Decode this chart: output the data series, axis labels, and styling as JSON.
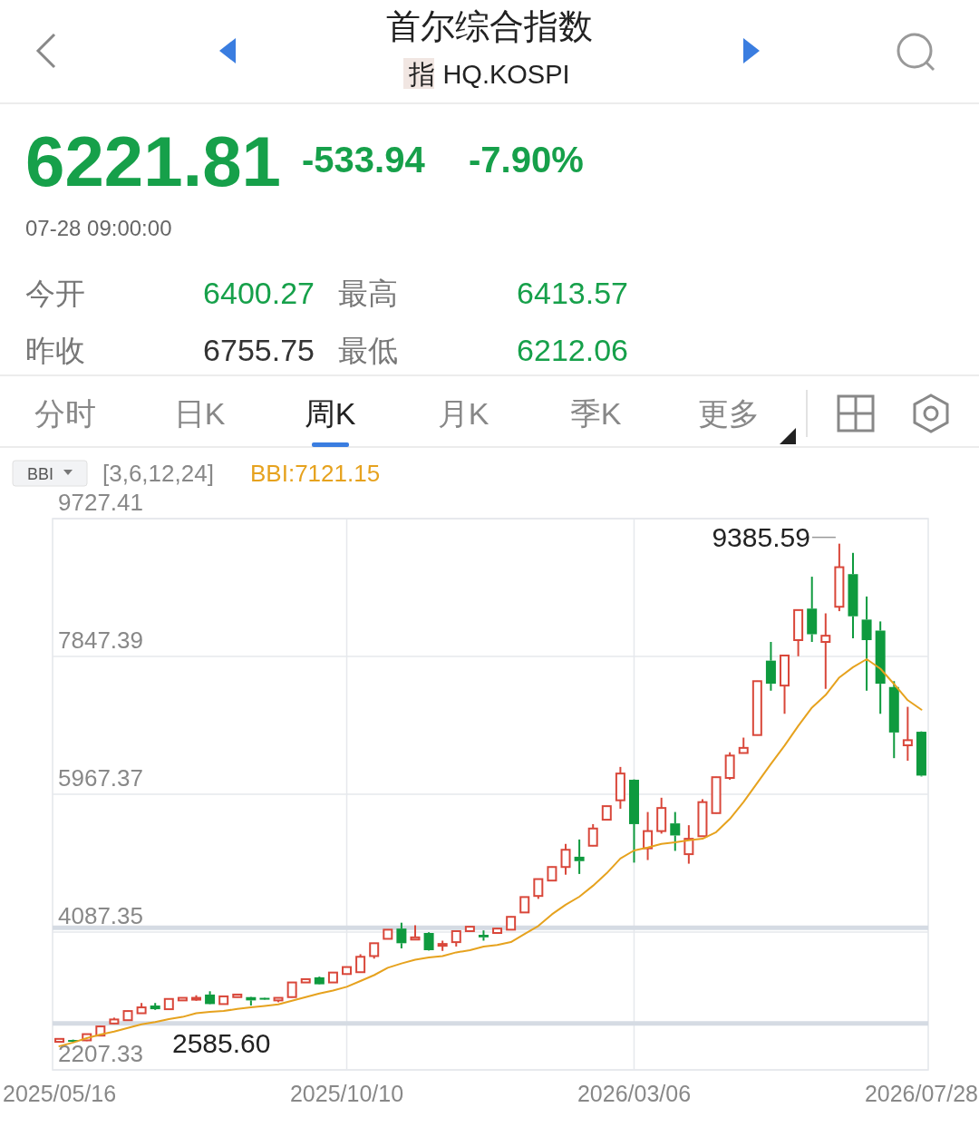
{
  "chart_data": {
    "type": "candlestick",
    "title": "首尔综合指数",
    "subtitle": "指 HQ.KOSPI",
    "categories": [
      "2025/05/16",
      null,
      null,
      null,
      null,
      null,
      null,
      null,
      null,
      null,
      null,
      null,
      null,
      null,
      null,
      null,
      null,
      null,
      null,
      null,
      null,
      "2025/10/10",
      null,
      null,
      null,
      null,
      null,
      null,
      null,
      null,
      null,
      null,
      null,
      null,
      null,
      null,
      null,
      null,
      null,
      null,
      null,
      null,
      "2026/03/06",
      null,
      null,
      null,
      null,
      null,
      null,
      null,
      null,
      null,
      null,
      null,
      null,
      null,
      null,
      null,
      null,
      null,
      null,
      null,
      null,
      "2026/07/28"
    ],
    "ohlc": [
      [
        2590,
        2635,
        2590,
        2630
      ],
      [
        2615,
        2620,
        2585.6,
        2590
      ],
      [
        2610,
        2700,
        2600,
        2695
      ],
      [
        2675,
        2810,
        2670,
        2800
      ],
      [
        2840,
        2920,
        2835,
        2895
      ],
      [
        2885,
        3015,
        2880,
        3010
      ],
      [
        2980,
        3120,
        2975,
        3060
      ],
      [
        3085,
        3120,
        3025,
        3035
      ],
      [
        3035,
        3180,
        3030,
        3175
      ],
      [
        3155,
        3195,
        3150,
        3190
      ],
      [
        3165,
        3225,
        3150,
        3190
      ],
      [
        3235,
        3280,
        3100,
        3105
      ],
      [
        3105,
        3215,
        3100,
        3210
      ],
      [
        3200,
        3240,
        3195,
        3235
      ],
      [
        3200,
        3205,
        3085,
        3155
      ],
      [
        3190,
        3195,
        3160,
        3165
      ],
      [
        3155,
        3195,
        3130,
        3190
      ],
      [
        3200,
        3405,
        3195,
        3400
      ],
      [
        3400,
        3450,
        3395,
        3445
      ],
      [
        3470,
        3480,
        3370,
        3375
      ],
      [
        3400,
        3540,
        3395,
        3535
      ],
      [
        3515,
        3615,
        3510,
        3610
      ],
      [
        3540,
        3785,
        3535,
        3750
      ],
      [
        3760,
        3940,
        3725,
        3935
      ],
      [
        3995,
        4125,
        3990,
        4120
      ],
      [
        4135,
        4215,
        3865,
        3935
      ],
      [
        3985,
        4180,
        3980,
        4015
      ],
      [
        4075,
        4085,
        3835,
        3840
      ],
      [
        3900,
        3970,
        3830,
        3925
      ],
      [
        3950,
        4105,
        3890,
        4100
      ],
      [
        4100,
        4165,
        4095,
        4160
      ],
      [
        4050,
        4110,
        3970,
        4015
      ],
      [
        4075,
        4140,
        4070,
        4135
      ],
      [
        4120,
        4300,
        4115,
        4295
      ],
      [
        4355,
        4570,
        4350,
        4565
      ],
      [
        4580,
        4815,
        4540,
        4810
      ],
      [
        4790,
        4980,
        4785,
        4975
      ],
      [
        4975,
        5290,
        4870,
        5210
      ],
      [
        5115,
        5350,
        4880,
        5055
      ],
      [
        5265,
        5560,
        5260,
        5500
      ],
      [
        5620,
        5810,
        5615,
        5805
      ],
      [
        5885,
        6340,
        5770,
        6250
      ],
      [
        6165,
        6170,
        5035,
        5560
      ],
      [
        5230,
        5725,
        5070,
        5465
      ],
      [
        5465,
        5920,
        5430,
        5780
      ],
      [
        5570,
        5725,
        5195,
        5405
      ],
      [
        5150,
        5545,
        5020,
        5360
      ],
      [
        5395,
        5900,
        5390,
        5860
      ],
      [
        5710,
        6205,
        5705,
        6200
      ],
      [
        6190,
        6540,
        6165,
        6495
      ],
      [
        6530,
        6740,
        6525,
        6600
      ],
      [
        6775,
        7515,
        6770,
        7510
      ],
      [
        7790,
        8045,
        7380,
        7475
      ],
      [
        7450,
        7865,
        7065,
        7860
      ],
      [
        8070,
        8485,
        7850,
        8480
      ],
      [
        8500,
        8935,
        8045,
        8150
      ],
      [
        8045,
        8435,
        7405,
        8130
      ],
      [
        8525,
        9385.59,
        8465,
        9065
      ],
      [
        8970,
        9260,
        8095,
        8395
      ],
      [
        8350,
        8665,
        7380,
        8070
      ],
      [
        8200,
        8325,
        7065,
        7475
      ],
      [
        7430,
        7510,
        6460,
        6810
      ],
      [
        6635,
        7160,
        6425,
        6705
      ],
      [
        6820,
        6825,
        6210,
        6221.81
      ]
    ],
    "colors": [
      "#d9473a",
      "#0e9a3e",
      "#d9473a",
      "#d9473a",
      "#d9473a",
      "#d9473a",
      "#d9473a",
      "#0e9a3e",
      "#d9473a",
      "#d9473a",
      "#d9473a",
      "#0e9a3e",
      "#d9473a",
      "#d9473a",
      "#0e9a3e",
      "#0e9a3e",
      "#d9473a",
      "#d9473a",
      "#d9473a",
      "#0e9a3e",
      "#d9473a",
      "#d9473a",
      "#d9473a",
      "#d9473a",
      "#d9473a",
      "#0e9a3e",
      "#d9473a",
      "#0e9a3e",
      "#d9473a",
      "#d9473a",
      "#d9473a",
      "#0e9a3e",
      "#d9473a",
      "#d9473a",
      "#d9473a",
      "#d9473a",
      "#d9473a",
      "#d9473a",
      "#0e9a3e",
      "#d9473a",
      "#d9473a",
      "#d9473a",
      "#0e9a3e",
      "#d9473a",
      "#d9473a",
      "#0e9a3e",
      "#d9473a",
      "#d9473a",
      "#d9473a",
      "#d9473a",
      "#d9473a",
      "#d9473a",
      "#0e9a3e",
      "#d9473a",
      "#d9473a",
      "#0e9a3e",
      "#d9473a",
      "#d9473a",
      "#0e9a3e",
      "#0e9a3e",
      "#0e9a3e",
      "#0e9a3e",
      "#d9473a",
      "#0e9a3e"
    ],
    "series": [
      {
        "type": "line",
        "color": "#e6a21e",
        "values": [
          2530,
          2580,
          2640,
          2690,
          2730,
          2780,
          2830,
          2860,
          2900,
          2930,
          2980,
          3000,
          3010,
          3040,
          3060,
          3080,
          3100,
          3150,
          3200,
          3250,
          3290,
          3340,
          3420,
          3500,
          3600,
          3660,
          3710,
          3740,
          3760,
          3810,
          3840,
          3890,
          3910,
          3950,
          4060,
          4170,
          4330,
          4460,
          4570,
          4720,
          4890,
          5090,
          5200,
          5240,
          5290,
          5310,
          5340,
          5360,
          5450,
          5630,
          5860,
          6120,
          6380,
          6630,
          6900,
          7150,
          7320,
          7560,
          7700,
          7810,
          7680,
          7470,
          7250,
          7120
        ]
      }
    ],
    "ylim": [
      2207.33,
      9727.41
    ],
    "yticks": [
      2207.33,
      4087.35,
      5967.37,
      7847.39,
      9727.41
    ],
    "grid": true,
    "ref_lines": [
      {
        "axis": "y",
        "value": 4145,
        "color": "#d5dbe3"
      },
      {
        "axis": "y",
        "value": 2840,
        "color": "#d5dbe3"
      }
    ],
    "annotations": [
      "6221.81",
      "-533.94",
      "-7.90%",
      "07-28 09:00:00",
      "今开",
      "6400.27",
      "最高",
      "6413.57",
      "昨收",
      "6755.75",
      "最低",
      "6212.06",
      "分时",
      "日K",
      "周K",
      "月K",
      "季K",
      "更多",
      "BBI",
      "[3,6,12,24]",
      "BBI:7121.15",
      "9385.59",
      "2585.60"
    ]
  }
}
